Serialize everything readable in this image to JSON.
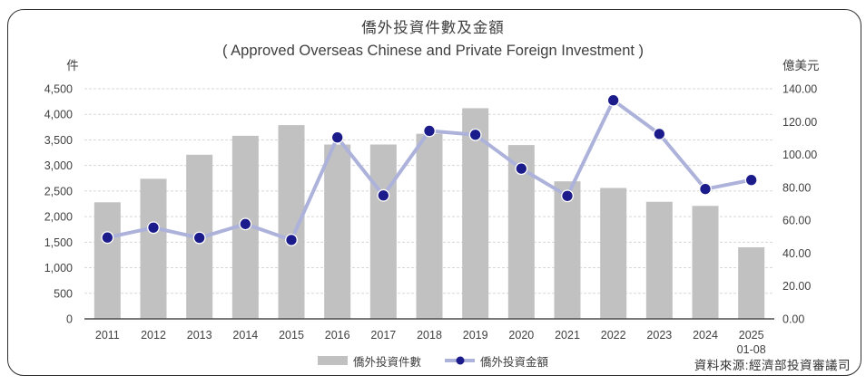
{
  "header": {
    "title": "僑外投資件數及金額",
    "subtitle": "( Approved Overseas Chinese and Private Foreign Investment )"
  },
  "axes": {
    "left_unit": "件",
    "right_unit": "億美元"
  },
  "legend": {
    "bar_label": "僑外投資件數",
    "line_label": "僑外投資金額"
  },
  "footer": {
    "source": "資料來源:經濟部投資審議司"
  },
  "colors": {
    "bar": "#c1c1c1",
    "line": "#adb2db",
    "dot": "#1b1b8b",
    "dot_ring": "#ffffff",
    "grid": "#d8d8d8",
    "axis_line": "#4d4d4d",
    "tick_text": "#404040",
    "frame": "#2f2f33"
  },
  "chart_data": {
    "type": "bar+line",
    "title": "僑外投資件數及金額",
    "subtitle": "( Approved Overseas Chinese and Private Foreign Investment )",
    "categories": [
      "2011",
      "2012",
      "2013",
      "2014",
      "2015",
      "2016",
      "2017",
      "2018",
      "2019",
      "2020",
      "2021",
      "2022",
      "2023",
      "2024",
      "2025"
    ],
    "category_sublabels": [
      "",
      "",
      "",
      "",
      "",
      "",
      "",
      "",
      "",
      "",
      "",
      "",
      "",
      "",
      "01-08"
    ],
    "series": [
      {
        "name": "僑外投資件數",
        "type": "bar",
        "axis": "left",
        "values": [
          2280,
          2740,
          3210,
          3580,
          3790,
          3410,
          3410,
          3620,
          4120,
          3400,
          2690,
          2560,
          2290,
          2210,
          1400
        ]
      },
      {
        "name": "僑外投資金額",
        "type": "line",
        "axis": "right",
        "values": [
          49.5,
          55.5,
          49.3,
          57.7,
          48.0,
          110.4,
          75.1,
          114.4,
          112.0,
          91.4,
          74.8,
          133.0,
          112.5,
          79.0,
          84.5
        ]
      }
    ],
    "left_axis": {
      "label": "件",
      "min": 0,
      "max": 4500,
      "step": 500,
      "tick_labels": [
        "0",
        "500",
        "1,000",
        "1,500",
        "2,000",
        "2,500",
        "3,000",
        "3,500",
        "4,000",
        "4,500"
      ]
    },
    "right_axis": {
      "label": "億美元",
      "min": 0,
      "max": 140,
      "step": 20,
      "tick_labels": [
        "0.00",
        "20.00",
        "40.00",
        "60.00",
        "80.00",
        "100.00",
        "120.00",
        "140.00"
      ]
    },
    "grid": true,
    "legend_position": "bottom"
  }
}
